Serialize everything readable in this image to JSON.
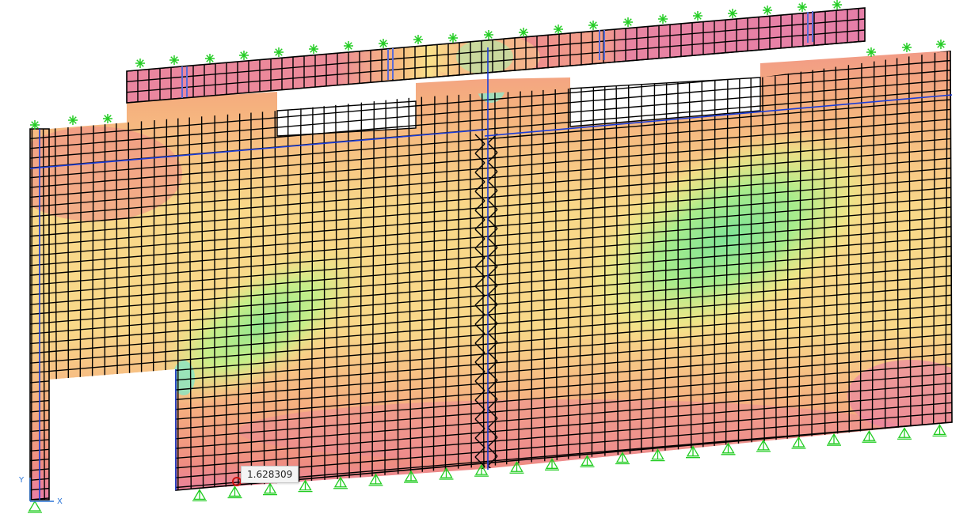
{
  "probe": {
    "value": "1.628309"
  },
  "triad": {
    "x_label": "X",
    "y_label": "Y"
  },
  "colors": {
    "background": "#ffffff",
    "mesh_line": "#000000",
    "frame_line": "#1a3cd8",
    "restraint": "#22cc22",
    "probe_marker": "#cc1111",
    "contour_scale": [
      "#e87fa6",
      "#f29a86",
      "#f7c07e",
      "#fae28a",
      "#d6ee86",
      "#9cec88",
      "#7fe7c0"
    ]
  },
  "icons": {
    "restraint": "pin-support-icon",
    "spring": "spring-support-icon",
    "probe": "probe-point-icon"
  }
}
